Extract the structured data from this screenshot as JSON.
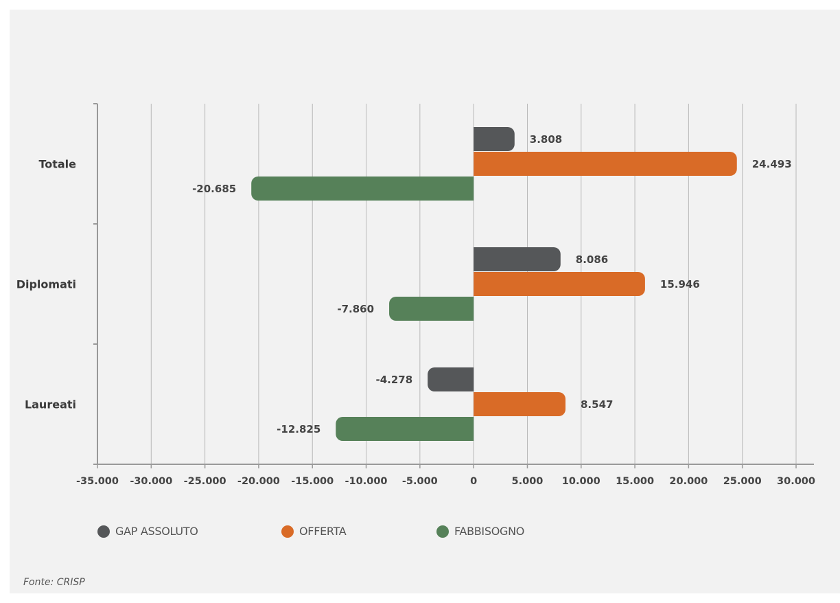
{
  "chart_data": {
    "type": "bar",
    "orientation": "horizontal",
    "categories": [
      "Totale",
      "Diplomati",
      "Laureati"
    ],
    "series": [
      {
        "name": "GAP ASSOLUTO",
        "color": "#555759",
        "values": [
          3808,
          8086,
          -4278
        ],
        "labels": [
          "3.808",
          "8.086",
          "-4.278"
        ]
      },
      {
        "name": "OFFERTA",
        "color": "#d96b27",
        "values": [
          24493,
          15946,
          8547
        ],
        "labels": [
          "24.493",
          "15.946",
          "8.547"
        ]
      },
      {
        "name": "FABBISOGNO",
        "color": "#568159",
        "values": [
          -20685,
          -7860,
          -12825
        ],
        "labels": [
          "-20.685",
          "-7.860",
          "-12.825"
        ]
      }
    ],
    "xlim": [
      -35000,
      30000
    ],
    "xticks": [
      -35000,
      -30000,
      -25000,
      -20000,
      -15000,
      -10000,
      -5000,
      0,
      5000,
      10000,
      15000,
      20000,
      25000,
      30000
    ],
    "xtick_labels": [
      "-35.000",
      "-30.000",
      "-25.000",
      "-20.000",
      "-15.000",
      "-10.000",
      "-5.000",
      "0",
      "5.000",
      "10.000",
      "15.000",
      "20.000",
      "25.000",
      "30.000"
    ],
    "grid": true,
    "legend_position": "bottom"
  },
  "source": "Fonte: CRISP"
}
